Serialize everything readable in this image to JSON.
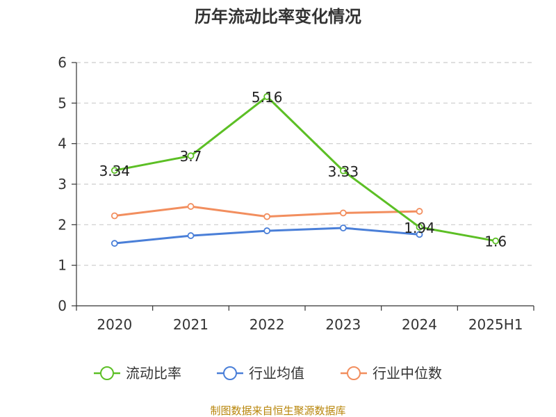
{
  "chart_data": {
    "type": "line",
    "title": "历年流动比率变化情况",
    "categories": [
      "2020",
      "2021",
      "2022",
      "2023",
      "2024",
      "2025H1"
    ],
    "ylim": [
      0,
      6
    ],
    "yticks": [
      "0",
      "1",
      "2",
      "3",
      "4",
      "5",
      "6"
    ],
    "grid": true,
    "legend_position": "bottom",
    "series": [
      {
        "name": "流动比率",
        "color": "#5cbf25",
        "values": [
          3.34,
          3.7,
          5.16,
          3.33,
          1.94,
          1.6
        ],
        "show_labels": true
      },
      {
        "name": "行业均值",
        "color": "#4a7fd8",
        "values": [
          1.54,
          1.73,
          1.85,
          1.92,
          1.76,
          null
        ],
        "show_labels": false
      },
      {
        "name": "行业中位数",
        "color": "#f28e5e",
        "values": [
          2.22,
          2.45,
          2.2,
          2.29,
          2.33,
          null
        ],
        "show_labels": false
      }
    ],
    "data_labels": [
      "3.34",
      "3.7",
      "5.16",
      "3.33",
      "1.94",
      "1.6"
    ]
  },
  "source_text": "制图数据来自恒生聚源数据库"
}
